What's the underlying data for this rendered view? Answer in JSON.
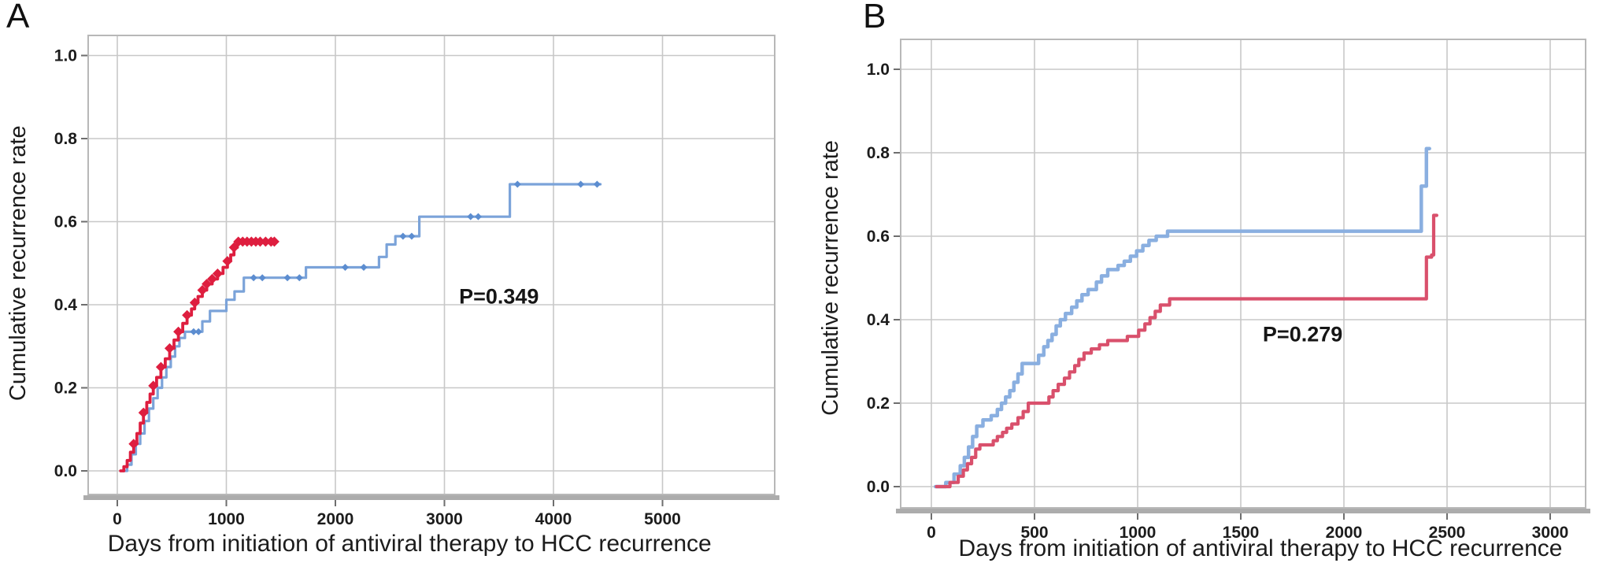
{
  "figure": {
    "background": "#ffffff",
    "panel_a_label": "A",
    "panel_b_label": "B"
  },
  "chart_data": [
    {
      "panel": "A",
      "type": "line",
      "subtype": "kaplan-meier-step",
      "title": "A",
      "xlabel": "Days from initiation of antiviral therapy to HCC recurrence",
      "ylabel": "Cumulative recurrence rate",
      "xlim": [
        0,
        6000
      ],
      "ylim": [
        0,
        1.05
      ],
      "grid": true,
      "legend": "none",
      "xticks": [
        0,
        1000,
        2000,
        3000,
        4000,
        5000
      ],
      "xtick_labels": [
        "0",
        "1000",
        "2000",
        "3000",
        "4000",
        "5000"
      ],
      "yticks": [
        0.0,
        0.2,
        0.4,
        0.6,
        0.8,
        1.0
      ],
      "ytick_labels": [
        "0.0",
        "0.2",
        "0.4",
        "0.6",
        "0.8",
        "1.0"
      ],
      "annotation": {
        "text": "P=0.349",
        "x": 3500,
        "y": 0.42
      },
      "series": [
        {
          "name": "blue-group",
          "color": "#7BA3D9",
          "censor_color": "#5C8DD0",
          "line_width": 3.2,
          "marker_size": 4.5,
          "points": [
            [
              50,
              0
            ],
            [
              90,
              0.015
            ],
            [
              130,
              0.04
            ],
            [
              170,
              0.065
            ],
            [
              210,
              0.09
            ],
            [
              250,
              0.12
            ],
            [
              290,
              0.15
            ],
            [
              330,
              0.175
            ],
            [
              370,
              0.2
            ],
            [
              410,
              0.225
            ],
            [
              450,
              0.25
            ],
            [
              490,
              0.275
            ],
            [
              530,
              0.3
            ],
            [
              570,
              0.32
            ],
            [
              620,
              0.335
            ],
            [
              780,
              0.36
            ],
            [
              850,
              0.385
            ],
            [
              1000,
              0.412
            ],
            [
              1075,
              0.432
            ],
            [
              1160,
              0.465
            ],
            [
              1730,
              0.49
            ],
            [
              2400,
              0.515
            ],
            [
              2470,
              0.545
            ],
            [
              2550,
              0.565
            ],
            [
              2770,
              0.612
            ],
            [
              3600,
              0.69
            ],
            [
              4430,
              0.69
            ]
          ],
          "censors": [
            [
              700,
              0.335
            ],
            [
              745,
              0.335
            ],
            [
              1250,
              0.465
            ],
            [
              1330,
              0.465
            ],
            [
              1560,
              0.465
            ],
            [
              1670,
              0.465
            ],
            [
              2090,
              0.49
            ],
            [
              2260,
              0.49
            ],
            [
              2620,
              0.565
            ],
            [
              2700,
              0.565
            ],
            [
              3240,
              0.612
            ],
            [
              3310,
              0.612
            ],
            [
              3670,
              0.69
            ],
            [
              4250,
              0.69
            ],
            [
              4400,
              0.69
            ]
          ]
        },
        {
          "name": "red-group",
          "color": "#DE1E3F",
          "censor_color": "#DE1E3F",
          "line_width": 3.8,
          "marker_size": 6.5,
          "points": [
            [
              30,
              0
            ],
            [
              60,
              0.01
            ],
            [
              90,
              0.025
            ],
            [
              120,
              0.045
            ],
            [
              150,
              0.065
            ],
            [
              180,
              0.09
            ],
            [
              210,
              0.115
            ],
            [
              240,
              0.14
            ],
            [
              270,
              0.165
            ],
            [
              300,
              0.185
            ],
            [
              330,
              0.205
            ],
            [
              360,
              0.225
            ],
            [
              400,
              0.25
            ],
            [
              440,
              0.27
            ],
            [
              480,
              0.295
            ],
            [
              520,
              0.315
            ],
            [
              560,
              0.335
            ],
            [
              600,
              0.355
            ],
            [
              640,
              0.375
            ],
            [
              680,
              0.39
            ],
            [
              710,
              0.405
            ],
            [
              740,
              0.42
            ],
            [
              780,
              0.435
            ],
            [
              820,
              0.45
            ],
            [
              870,
              0.462
            ],
            [
              920,
              0.475
            ],
            [
              970,
              0.49
            ],
            [
              1010,
              0.505
            ],
            [
              1040,
              0.52
            ],
            [
              1070,
              0.538
            ],
            [
              1100,
              0.552
            ],
            [
              1440,
              0.552
            ]
          ],
          "censors": [
            [
              150,
              0.065
            ],
            [
              240,
              0.14
            ],
            [
              330,
              0.205
            ],
            [
              400,
              0.25
            ],
            [
              480,
              0.295
            ],
            [
              560,
              0.335
            ],
            [
              640,
              0.375
            ],
            [
              710,
              0.405
            ],
            [
              780,
              0.435
            ],
            [
              820,
              0.45
            ],
            [
              870,
              0.462
            ],
            [
              920,
              0.475
            ],
            [
              1010,
              0.505
            ],
            [
              1070,
              0.538
            ],
            [
              1110,
              0.552
            ],
            [
              1150,
              0.552
            ],
            [
              1190,
              0.552
            ],
            [
              1230,
              0.552
            ],
            [
              1270,
              0.552
            ],
            [
              1310,
              0.552
            ],
            [
              1360,
              0.552
            ],
            [
              1410,
              0.552
            ],
            [
              1440,
              0.552
            ]
          ]
        }
      ]
    },
    {
      "panel": "B",
      "type": "line",
      "subtype": "kaplan-meier-step",
      "title": "B",
      "xlabel": "Days from initiation of antiviral therapy to HCC recurrence",
      "ylabel": "Cumulative recurrence rate",
      "xlim": [
        0,
        3200
      ],
      "ylim": [
        0,
        1.05
      ],
      "grid": true,
      "legend": "none",
      "xticks": [
        0,
        500,
        1000,
        1500,
        2000,
        2500,
        3000
      ],
      "xtick_labels": [
        "0",
        "500",
        "1000",
        "1500",
        "2000",
        "2500",
        "3000"
      ],
      "yticks": [
        0.0,
        0.2,
        0.4,
        0.6,
        0.8,
        1.0
      ],
      "ytick_labels": [
        "0.0",
        "0.2",
        "0.4",
        "0.6",
        "0.8",
        "1.0"
      ],
      "annotation": {
        "text": "P=0.279",
        "x": 1800,
        "y": 0.365
      },
      "series": [
        {
          "name": "blue-group",
          "color": "#8AAFE0",
          "censor_color": "#8AAFE0",
          "line_width": 4.5,
          "marker_size": 0,
          "points": [
            [
              20,
              0
            ],
            [
              70,
              0.01
            ],
            [
              110,
              0.03
            ],
            [
              140,
              0.05
            ],
            [
              160,
              0.07
            ],
            [
              180,
              0.095
            ],
            [
              200,
              0.12
            ],
            [
              220,
              0.145
            ],
            [
              250,
              0.16
            ],
            [
              290,
              0.17
            ],
            [
              320,
              0.185
            ],
            [
              340,
              0.2
            ],
            [
              360,
              0.215
            ],
            [
              380,
              0.23
            ],
            [
              400,
              0.25
            ],
            [
              420,
              0.27
            ],
            [
              440,
              0.295
            ],
            [
              520,
              0.315
            ],
            [
              545,
              0.335
            ],
            [
              565,
              0.35
            ],
            [
              585,
              0.365
            ],
            [
              605,
              0.385
            ],
            [
              625,
              0.4
            ],
            [
              650,
              0.415
            ],
            [
              680,
              0.43
            ],
            [
              705,
              0.445
            ],
            [
              730,
              0.46
            ],
            [
              760,
              0.472
            ],
            [
              800,
              0.49
            ],
            [
              825,
              0.505
            ],
            [
              855,
              0.52
            ],
            [
              905,
              0.53
            ],
            [
              935,
              0.54
            ],
            [
              965,
              0.552
            ],
            [
              995,
              0.565
            ],
            [
              1025,
              0.578
            ],
            [
              1055,
              0.59
            ],
            [
              1090,
              0.6
            ],
            [
              1145,
              0.612
            ],
            [
              2375,
              0.72
            ],
            [
              2400,
              0.81
            ],
            [
              2415,
              0.81
            ]
          ],
          "censors": []
        },
        {
          "name": "red-group",
          "color": "#D9506C",
          "censor_color": "#D9506C",
          "line_width": 4.2,
          "marker_size": 0,
          "points": [
            [
              25,
              0
            ],
            [
              90,
              0.01
            ],
            [
              130,
              0.025
            ],
            [
              155,
              0.04
            ],
            [
              175,
              0.055
            ],
            [
              195,
              0.07
            ],
            [
              215,
              0.09
            ],
            [
              235,
              0.1
            ],
            [
              300,
              0.11
            ],
            [
              320,
              0.12
            ],
            [
              345,
              0.13
            ],
            [
              365,
              0.14
            ],
            [
              390,
              0.15
            ],
            [
              420,
              0.165
            ],
            [
              445,
              0.18
            ],
            [
              470,
              0.2
            ],
            [
              570,
              0.215
            ],
            [
              590,
              0.23
            ],
            [
              615,
              0.245
            ],
            [
              645,
              0.26
            ],
            [
              670,
              0.275
            ],
            [
              695,
              0.29
            ],
            [
              715,
              0.305
            ],
            [
              740,
              0.32
            ],
            [
              775,
              0.33
            ],
            [
              815,
              0.34
            ],
            [
              855,
              0.35
            ],
            [
              950,
              0.36
            ],
            [
              1005,
              0.375
            ],
            [
              1035,
              0.39
            ],
            [
              1060,
              0.405
            ],
            [
              1085,
              0.42
            ],
            [
              1110,
              0.435
            ],
            [
              1155,
              0.45
            ],
            [
              2400,
              0.55
            ],
            [
              2425,
              0.555
            ],
            [
              2435,
              0.65
            ],
            [
              2450,
              0.65
            ]
          ],
          "censors": []
        }
      ]
    }
  ]
}
